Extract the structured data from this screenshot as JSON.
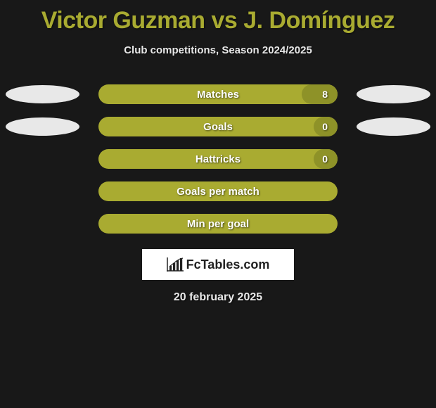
{
  "title": "Victor Guzman vs J. Domínguez",
  "subtitle": "Club competitions, Season 2024/2025",
  "logo_text": "FcTables.com",
  "date": "20 february 2025",
  "colors": {
    "background": "#181818",
    "accent": "#a9ab31",
    "accent_dark": "#8e9228",
    "ellipse": "#e8e8e8",
    "text_light": "#e8e8e8",
    "logo_bg": "#ffffff"
  },
  "stats": [
    {
      "label": "Matches",
      "value": "8",
      "show_value": true,
      "show_ellipses": true,
      "fill_pct": 15
    },
    {
      "label": "Goals",
      "value": "0",
      "show_value": true,
      "show_ellipses": true,
      "fill_pct": 10
    },
    {
      "label": "Hattricks",
      "value": "0",
      "show_value": true,
      "show_ellipses": false,
      "fill_pct": 10
    },
    {
      "label": "Goals per match",
      "value": "",
      "show_value": false,
      "show_ellipses": false,
      "fill_pct": 0
    },
    {
      "label": "Min per goal",
      "value": "",
      "show_value": false,
      "show_ellipses": false,
      "fill_pct": 0
    }
  ]
}
